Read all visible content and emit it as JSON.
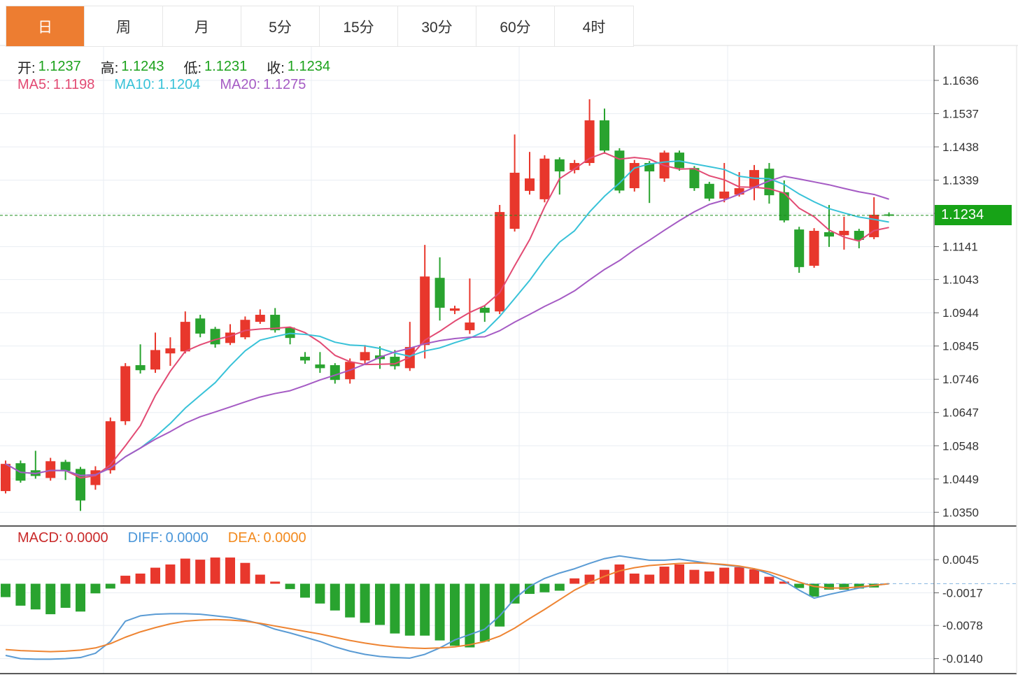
{
  "tabs": [
    {
      "label": "日",
      "active": true
    },
    {
      "label": "周",
      "active": false
    },
    {
      "label": "月",
      "active": false
    },
    {
      "label": "5分",
      "active": false
    },
    {
      "label": "15分",
      "active": false
    },
    {
      "label": "30分",
      "active": false
    },
    {
      "label": "60分",
      "active": false
    },
    {
      "label": "4时",
      "active": false
    }
  ],
  "ohlc_legend": {
    "items": [
      {
        "label": "开:",
        "value": "1.1237"
      },
      {
        "label": "高:",
        "value": "1.1243"
      },
      {
        "label": "低:",
        "value": "1.1231"
      },
      {
        "label": "收:",
        "value": "1.1234"
      }
    ]
  },
  "ma_legend": {
    "items": [
      {
        "label": "MA5:",
        "value": "1.1198",
        "color": "#e24a73"
      },
      {
        "label": "MA10:",
        "value": "1.1204",
        "color": "#38c2d8"
      },
      {
        "label": "MA20:",
        "value": "1.1275",
        "color": "#a55bc4"
      }
    ]
  },
  "macd_legend": {
    "items": [
      {
        "label": "MACD:",
        "value": "0.0000",
        "color": "#c92a2a"
      },
      {
        "label": "DIFF:",
        "value": "0.0000",
        "color": "#4a96d9"
      },
      {
        "label": "DEA:",
        "value": "0.0000",
        "color": "#f28a1e"
      }
    ]
  },
  "price_axis": {
    "current_price_label": "1.1234",
    "visible_labels": [
      "1.1636",
      "1.1537",
      "1.1438",
      "1.1339",
      "1.1141",
      "1.1043",
      "1.0944",
      "1.0845",
      "1.0746",
      "1.0647",
      "1.0548",
      "1.0449",
      "1.0350"
    ]
  },
  "macd_axis": {
    "visible_labels": [
      "0.0045",
      "-0.0017",
      "-0.0078",
      "-0.0140"
    ]
  },
  "colors": {
    "up_candle": "#e8372c",
    "down_candle": "#29a32f",
    "ma5_line": "#e24a73",
    "ma10_line": "#38c2d8",
    "ma20_line": "#a55bc4",
    "diff_line": "#5a9bd4",
    "dea_line": "#ee8432",
    "value_green": "#1ca21c",
    "badge_green": "#17a317",
    "price_dotted_line": "#1d8f1d",
    "grid": "#e9eef3",
    "axis_text": "#333333",
    "active_tab": "#ed7d31"
  },
  "chart_data": {
    "type": "candlestick+macd",
    "price_panel": {
      "ylim": [
        1.0309,
        1.174
      ],
      "gridline_values": [
        1.1636,
        1.1537,
        1.1438,
        1.1339,
        1.124,
        1.1141,
        1.1043,
        1.0944,
        1.0845,
        1.0746,
        1.0647,
        1.0548,
        1.0449,
        1.035
      ],
      "unlabeled_gridline": 1.124,
      "current_price": 1.1234,
      "ma_periods": [
        5,
        10,
        20
      ],
      "candles_ohlc": [
        [
          1.0413,
          1.0504,
          1.0406,
          1.0494
        ],
        [
          1.0496,
          1.0504,
          1.0438,
          1.0444
        ],
        [
          1.0475,
          1.0533,
          1.045,
          1.0458
        ],
        [
          1.0452,
          1.0512,
          1.0444,
          1.0502
        ],
        [
          1.05,
          1.0506,
          1.0446,
          1.0473
        ],
        [
          1.0479,
          1.0485,
          1.0354,
          1.0385
        ],
        [
          1.0431,
          1.0487,
          1.0417,
          1.0475
        ],
        [
          1.0475,
          1.0632,
          1.0465,
          1.0621
        ],
        [
          1.0621,
          1.0794,
          1.061,
          1.0785
        ],
        [
          1.0788,
          1.085,
          1.0763,
          1.0773
        ],
        [
          1.0775,
          1.0885,
          1.0765,
          1.0833
        ],
        [
          1.0823,
          1.0871,
          1.0786,
          1.0838
        ],
        [
          1.0829,
          1.0948,
          1.0823,
          1.0917
        ],
        [
          1.0927,
          1.0938,
          1.0871,
          1.0882
        ],
        [
          1.0896,
          1.0902,
          1.084,
          1.085
        ],
        [
          1.0854,
          1.091,
          1.0848,
          1.0885
        ],
        [
          1.0871,
          1.0933,
          1.0865,
          1.0923
        ],
        [
          1.0917,
          1.0954,
          1.0911,
          1.0938
        ],
        [
          1.0938,
          1.0958,
          1.0885,
          1.0892
        ],
        [
          1.09,
          1.0902,
          1.085,
          1.0869
        ],
        [
          1.0813,
          1.0827,
          1.0792,
          1.0802
        ],
        [
          1.079,
          1.0827,
          1.0765,
          1.0779
        ],
        [
          1.0788,
          1.0794,
          1.0733,
          1.0744
        ],
        [
          1.0746,
          1.0808,
          1.0733,
          1.0798
        ],
        [
          1.0802,
          1.0848,
          1.0792,
          1.0827
        ],
        [
          1.0817,
          1.0844,
          1.0777,
          1.0806
        ],
        [
          1.0813,
          1.0833,
          1.0775,
          1.0785
        ],
        [
          1.0779,
          1.0917,
          1.0771,
          1.0842
        ],
        [
          1.0848,
          1.1146,
          1.0808,
          1.1052
        ],
        [
          1.1048,
          1.1109,
          1.0921,
          1.0959
        ],
        [
          1.095,
          1.0965,
          1.094,
          1.0957
        ],
        [
          1.0892,
          1.1046,
          1.0881,
          1.0915
        ],
        [
          1.0959,
          1.0965,
          1.0917,
          1.0944
        ],
        [
          1.0948,
          1.1265,
          1.094,
          1.1244
        ],
        [
          1.1194,
          1.1475,
          1.1186,
          1.1361
        ],
        [
          1.1307,
          1.1423,
          1.1296,
          1.1344
        ],
        [
          1.1282,
          1.1413,
          1.1273,
          1.1403
        ],
        [
          1.1401,
          1.1407,
          1.1296,
          1.1365
        ],
        [
          1.1369,
          1.1399,
          1.1359,
          1.139
        ],
        [
          1.139,
          1.158,
          1.1382,
          1.1517
        ],
        [
          1.1517,
          1.1552,
          1.1419,
          1.1427
        ],
        [
          1.1427,
          1.1434,
          1.13,
          1.1308
        ],
        [
          1.1315,
          1.1399,
          1.1305,
          1.139
        ],
        [
          1.139,
          1.1396,
          1.1271,
          1.1365
        ],
        [
          1.1344,
          1.1427,
          1.1334,
          1.1421
        ],
        [
          1.1421,
          1.1427,
          1.1367,
          1.1375
        ],
        [
          1.1375,
          1.1381,
          1.1307,
          1.1315
        ],
        [
          1.1328,
          1.1334,
          1.1277,
          1.1284
        ],
        [
          1.1284,
          1.139,
          1.1273,
          1.1305
        ],
        [
          1.1296,
          1.1363,
          1.129,
          1.1315
        ],
        [
          1.1315,
          1.1384,
          1.1279,
          1.1369
        ],
        [
          1.1373,
          1.139,
          1.1269,
          1.1294
        ],
        [
          1.1303,
          1.1338,
          1.1213,
          1.1219
        ],
        [
          1.1192,
          1.12,
          1.1063,
          1.108
        ],
        [
          1.1084,
          1.1196,
          1.1078,
          1.1188
        ],
        [
          1.1184,
          1.1265,
          1.114,
          1.1171
        ],
        [
          1.1175,
          1.123,
          1.1132,
          1.1188
        ],
        [
          1.1188,
          1.1194,
          1.1136,
          1.1161
        ],
        [
          1.1169,
          1.1288,
          1.1163,
          1.1236
        ],
        [
          1.1237,
          1.1243,
          1.1231,
          1.1234
        ]
      ]
    },
    "macd_panel": {
      "ylim": [
        -0.0168,
        0.0104
      ],
      "gridline_values": [
        0.0045,
        -0.0017,
        -0.0078,
        -0.014
      ],
      "histogram": [
        -0.0025,
        -0.0041,
        -0.0048,
        -0.0057,
        -0.0045,
        -0.0052,
        -0.0018,
        -0.0009,
        0.0015,
        0.0019,
        0.003,
        0.0036,
        0.0047,
        0.0045,
        0.0049,
        0.0049,
        0.0039,
        0.0017,
        0.0004,
        -0.001,
        -0.0026,
        -0.0037,
        -0.005,
        -0.0063,
        -0.0073,
        -0.0077,
        -0.0093,
        -0.0097,
        -0.0097,
        -0.0106,
        -0.0116,
        -0.0119,
        -0.0108,
        -0.008,
        -0.0037,
        -0.0019,
        -0.0016,
        -0.0013,
        0.001,
        0.0017,
        0.0026,
        0.0036,
        0.0019,
        0.0017,
        0.0032,
        0.0036,
        0.0026,
        0.0023,
        0.003,
        0.0031,
        0.0027,
        0.0013,
        0.0004,
        -0.0008,
        -0.0024,
        -0.0011,
        -0.0011,
        -0.0009,
        -0.0007,
        0.0
      ],
      "diff": [
        -0.0134,
        -0.014,
        -0.0141,
        -0.0141,
        -0.014,
        -0.0138,
        -0.013,
        -0.0108,
        -0.007,
        -0.006,
        -0.0057,
        -0.0056,
        -0.0056,
        -0.0057,
        -0.006,
        -0.0063,
        -0.0068,
        -0.0075,
        -0.0085,
        -0.0092,
        -0.01,
        -0.0108,
        -0.0118,
        -0.0126,
        -0.0132,
        -0.0136,
        -0.0138,
        -0.0139,
        -0.0132,
        -0.012,
        -0.0105,
        -0.0095,
        -0.0085,
        -0.006,
        -0.0028,
        -0.0005,
        0.001,
        0.002,
        0.0028,
        0.0038,
        0.0047,
        0.0052,
        0.0048,
        0.0044,
        0.0044,
        0.0046,
        0.0042,
        0.0038,
        0.0035,
        0.0032,
        0.0028,
        0.0018,
        0.0005,
        -0.0012,
        -0.0027,
        -0.002,
        -0.0014,
        -0.0008,
        -0.0003,
        0.0
      ],
      "dea": [
        -0.0123,
        -0.0125,
        -0.0126,
        -0.0127,
        -0.0126,
        -0.0124,
        -0.012,
        -0.0112,
        -0.01,
        -0.009,
        -0.0082,
        -0.0075,
        -0.007,
        -0.0068,
        -0.0067,
        -0.0068,
        -0.007,
        -0.0074,
        -0.0079,
        -0.0084,
        -0.0089,
        -0.0094,
        -0.01,
        -0.0106,
        -0.0111,
        -0.0115,
        -0.0118,
        -0.012,
        -0.0121,
        -0.012,
        -0.0118,
        -0.0114,
        -0.0108,
        -0.0098,
        -0.0083,
        -0.0065,
        -0.0048,
        -0.003,
        -0.0012,
        0.0002,
        0.0014,
        0.0024,
        0.003,
        0.0034,
        0.0036,
        0.0038,
        0.0039,
        0.0038,
        0.0036,
        0.0033,
        0.0028,
        0.0022,
        0.0013,
        0.0003,
        -0.0005,
        -0.0008,
        -0.0008,
        -0.0006,
        -0.0003,
        0.0
      ]
    },
    "vertical_gridlines": [
      148,
      445,
      742,
      1040
    ]
  }
}
